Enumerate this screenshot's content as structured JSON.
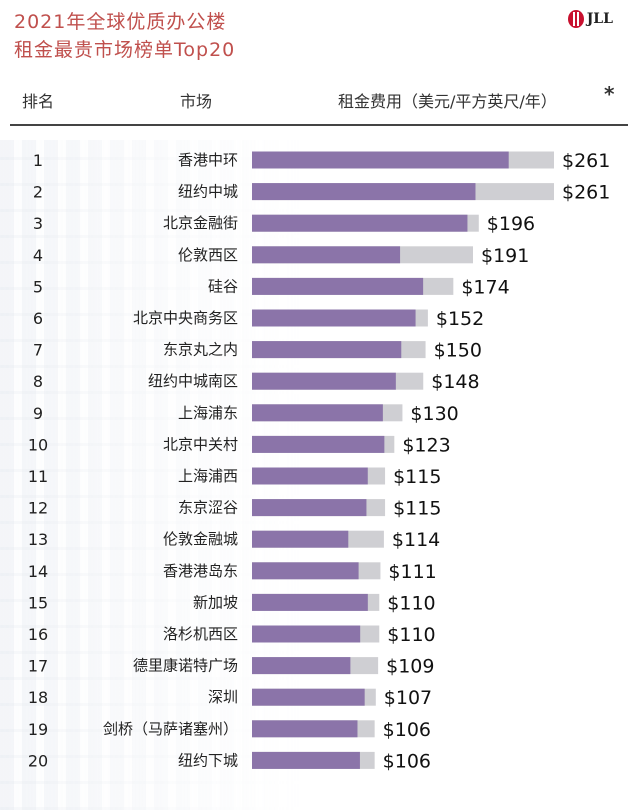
{
  "header": {
    "title_line1": "2021年全球优质办公楼",
    "title_line2": "租金最贵市场榜单Top20",
    "logo_text": "JLL",
    "col_rank": "排名",
    "col_market": "市场",
    "col_rent": "租金费用（美元/平方英尺/年）",
    "asterisk": "*"
  },
  "colors": {
    "title": "#c0504d",
    "primary_bar": "#8b74a9",
    "secondary_bar": "#cfcfd3"
  },
  "chart_data": {
    "type": "bar",
    "orientation": "horizontal",
    "xlim": [
      0,
      261
    ],
    "ranks": [
      "1",
      "2",
      "3",
      "4",
      "5",
      "6",
      "7",
      "8",
      "9",
      "10",
      "11",
      "12",
      "13",
      "14",
      "15",
      "16",
      "17",
      "18",
      "19",
      "20"
    ],
    "categories": [
      "香港中环",
      "纽约中城",
      "北京金融街",
      "伦敦西区",
      "硅谷",
      "北京中央商务区",
      "东京丸之内",
      "纽约中城南区",
      "上海浦东",
      "北京中关村",
      "上海浦西",
      "东京涩谷",
      "伦敦金融城",
      "香港港岛东",
      "新加坡",
      "洛杉机西区",
      "德里康诺特广场",
      "深圳",
      "剑桥（马萨诸塞州）",
      "纽约下城"
    ],
    "values": [
      261,
      261,
      196,
      191,
      174,
      152,
      150,
      148,
      130,
      123,
      115,
      115,
      114,
      111,
      110,
      110,
      109,
      107,
      106,
      106
    ],
    "value_labels": [
      "$261",
      "$261",
      "$196",
      "$191",
      "$174",
      "$152",
      "$150",
      "$148",
      "$130",
      "$123",
      "$115",
      "$115",
      "$114",
      "$111",
      "$110",
      "$110",
      "$109",
      "$107",
      "$106",
      "$106"
    ],
    "primary_fraction": [
      0.85,
      0.74,
      0.95,
      0.67,
      0.85,
      0.93,
      0.86,
      0.84,
      0.87,
      0.93,
      0.87,
      0.86,
      0.73,
      0.83,
      0.91,
      0.85,
      0.78,
      0.91,
      0.86,
      0.88
    ]
  }
}
